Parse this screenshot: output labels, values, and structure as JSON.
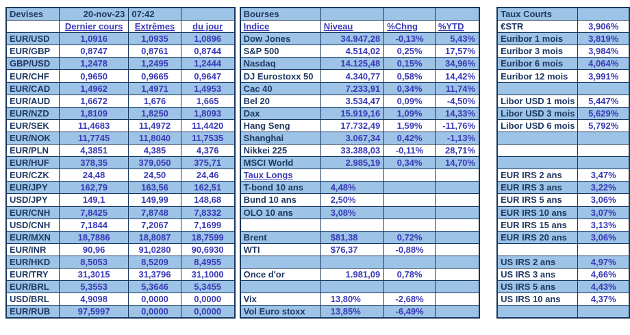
{
  "palette": {
    "row_blue": "#9DC3E6",
    "label_navy": "#1F3864",
    "value_indigo": "#3A3AB8",
    "border": "#17375E",
    "background": "#FFFFFF"
  },
  "left": {
    "title": "Devises",
    "date": "20-nov-23",
    "time": "07:42",
    "columns": [
      "Dernier cours",
      "Extrêmes",
      "du jour"
    ],
    "rows": [
      {
        "pair": "EUR/USD",
        "last": "1,0916",
        "high": "1,0935",
        "low": "1,0896"
      },
      {
        "pair": "EUR/GBP",
        "last": "0,8747",
        "high": "0,8761",
        "low": "0,8744"
      },
      {
        "pair": "GBP/USD",
        "last": "1,2478",
        "high": "1,2495",
        "low": "1,2444"
      },
      {
        "pair": "EUR/CHF",
        "last": "0,9650",
        "high": "0,9665",
        "low": "0,9647"
      },
      {
        "pair": "EUR/CAD",
        "last": "1,4962",
        "high": "1,4971",
        "low": "1,4953"
      },
      {
        "pair": "EUR/AUD",
        "last": "1,6672",
        "high": "1,676",
        "low": "1,665"
      },
      {
        "pair": "EUR/NZD",
        "last": "1,8109",
        "high": "1,8250",
        "low": "1,8093"
      },
      {
        "pair": "EUR/SEK",
        "last": "11,4683",
        "high": "11,4972",
        "low": "11,4420"
      },
      {
        "pair": "EUR/NOK",
        "last": "11,7745",
        "high": "11,8040",
        "low": "11,7535"
      },
      {
        "pair": "EUR/PLN",
        "last": "4,3851",
        "high": "4,385",
        "low": "4,376"
      },
      {
        "pair": "EUR/HUF",
        "last": "378,35",
        "high": "379,050",
        "low": "375,71"
      },
      {
        "pair": "EUR/CZK",
        "last": "24,48",
        "high": "24,50",
        "low": "24,46"
      },
      {
        "pair": "EUR/JPY",
        "last": "162,79",
        "high": "163,56",
        "low": "162,51"
      },
      {
        "pair": "USD/JPY",
        "last": "149,1",
        "high": "149,99",
        "low": "148,68"
      },
      {
        "pair": "EUR/CNH",
        "last": "7,8425",
        "high": "7,8748",
        "low": "7,8332"
      },
      {
        "pair": "USD/CNH",
        "last": "7,1844",
        "high": "7,2067",
        "low": "7,1699"
      },
      {
        "pair": "EUR/MXN",
        "last": "18,7886",
        "high": "18,8087",
        "low": "18,7599"
      },
      {
        "pair": "EUR/INR",
        "last": "90,96",
        "high": "91,0280",
        "low": "90,6930"
      },
      {
        "pair": "EUR/HKD",
        "last": "8,5053",
        "high": "8,5209",
        "low": "8,4955"
      },
      {
        "pair": "EUR/TRY",
        "last": "31,3015",
        "high": "31,3796",
        "low": "31,1000"
      },
      {
        "pair": "EUR/BRL",
        "last": "5,3553",
        "high": "5,3646",
        "low": "5,3455"
      },
      {
        "pair": "USD/BRL",
        "last": "4,9098",
        "high": "0,0000",
        "low": "0,0000"
      },
      {
        "pair": "EUR/RUB",
        "last": "97,5997",
        "high": "0,0000",
        "low": "0,0000"
      }
    ]
  },
  "middle": {
    "title": "Bourses",
    "columns": [
      "Indice",
      "Niveau",
      "%Chng",
      "%YTD"
    ],
    "rows": [
      {
        "label": "Dow Jones",
        "level": "34.947,28",
        "chng": "-0,13%",
        "ytd": "5,43%",
        "la": "r"
      },
      {
        "label": "S&P 500",
        "level": "4.514,02",
        "chng": "0,25%",
        "ytd": "17,57%",
        "la": "r"
      },
      {
        "label": "Nasdaq",
        "level": "14.125,48",
        "chng": "0,15%",
        "ytd": "34,96%",
        "la": "r"
      },
      {
        "label": "DJ Eurostoxx 50",
        "level": "4.340,77",
        "chng": "0,58%",
        "ytd": "14,42%",
        "la": "r"
      },
      {
        "label": "Cac 40",
        "level": "7.233,91",
        "chng": "0,34%",
        "ytd": "11,74%",
        "la": "r"
      },
      {
        "label": "Bel 20",
        "level": "3.534,47",
        "chng": "0,09%",
        "ytd": "-4,50%",
        "la": "r"
      },
      {
        "label": "Dax",
        "level": "15.919,16",
        "chng": "1,09%",
        "ytd": "14,33%",
        "la": "r"
      },
      {
        "label": "Hang Seng",
        "level": "17.732,49",
        "chng": "1,59%",
        "ytd": "-11,76%",
        "la": "r"
      },
      {
        "label": "Shanghai",
        "level": "3.067,34",
        "chng": "0,42%",
        "ytd": "-1,13%",
        "la": "r"
      },
      {
        "label": "Nikkei 225",
        "level": "33.388,03",
        "chng": "-0,11%",
        "ytd": "28,71%",
        "la": "r"
      },
      {
        "label": "MSCI World",
        "level": "2.985,19",
        "chng": "0,34%",
        "ytd": "14,70%",
        "la": "r"
      },
      {
        "label": "Taux Longs",
        "level": "",
        "chng": "",
        "ytd": "",
        "la": "l",
        "section_header": true
      },
      {
        "label": "T-bond 10 ans",
        "level": "4,48%",
        "chng": "",
        "ytd": "",
        "la": "l"
      },
      {
        "label": "Bund 10 ans",
        "level": "2,50%",
        "chng": "",
        "ytd": "",
        "la": "l"
      },
      {
        "label": "OLO 10 ans",
        "level": "3,08%",
        "chng": "",
        "ytd": "",
        "la": "l"
      },
      {
        "label": "",
        "level": "",
        "chng": "",
        "ytd": "",
        "la": "l"
      },
      {
        "label": "Brent",
        "level": "$81,38",
        "chng": "0,72%",
        "ytd": "",
        "la": "l"
      },
      {
        "label": "WTI",
        "level": "$76,37",
        "chng": "-0,88%",
        "ytd": "",
        "la": "l"
      },
      {
        "label": "",
        "level": "",
        "chng": "",
        "ytd": "",
        "la": "l"
      },
      {
        "label": "Once d'or",
        "level": "1.981,09",
        "chng": "0,78%",
        "ytd": "",
        "la": "r"
      },
      {
        "label": "",
        "level": "",
        "chng": "",
        "ytd": "",
        "la": "l"
      },
      {
        "label": "Vix",
        "level": "13,80%",
        "chng": "-2,68%",
        "ytd": "",
        "la": "l"
      },
      {
        "label": "Vol Euro stoxx",
        "level": "13,85%",
        "chng": "-6,49%",
        "ytd": "",
        "la": "l"
      }
    ]
  },
  "right": {
    "title": "Taux Courts",
    "rows": [
      {
        "label": "€STR",
        "value": "3,906%"
      },
      {
        "label": "Euribor 1 mois",
        "value": "3,819%"
      },
      {
        "label": "Euribor 3 mois",
        "value": "3,984%"
      },
      {
        "label": "Euribor 6 mois",
        "value": "4,064%"
      },
      {
        "label": "Euribor 12 mois",
        "value": "3,991%"
      },
      {
        "label": "",
        "value": ""
      },
      {
        "label": "Libor USD 1 mois",
        "value": "5,447%"
      },
      {
        "label": "Libor USD 3 mois",
        "value": "5,629%"
      },
      {
        "label": "Libor USD 6 mois",
        "value": "5,792%"
      },
      {
        "label": "",
        "value": ""
      },
      {
        "label": "",
        "value": ""
      },
      {
        "label": "",
        "value": ""
      },
      {
        "label": "EUR IRS 2 ans",
        "value": "3,47%"
      },
      {
        "label": "EUR IRS 3 ans",
        "value": "3,22%"
      },
      {
        "label": "EUR IRS 5 ans",
        "value": "3,06%"
      },
      {
        "label": "EUR IRS 10 ans",
        "value": "3,07%"
      },
      {
        "label": "EUR IRS 15 ans",
        "value": "3,13%"
      },
      {
        "label": "EUR IRS 20 ans",
        "value": "3,06%"
      },
      {
        "label": "",
        "value": ""
      },
      {
        "label": "US IRS 2 ans",
        "value": "4,97%"
      },
      {
        "label": "US IRS 3 ans",
        "value": "4,66%"
      },
      {
        "label": "US IRS 5 ans",
        "value": "4,43%"
      },
      {
        "label": "US IRS 10 ans",
        "value": "4,37%"
      },
      {
        "label": "",
        "value": ""
      }
    ]
  }
}
